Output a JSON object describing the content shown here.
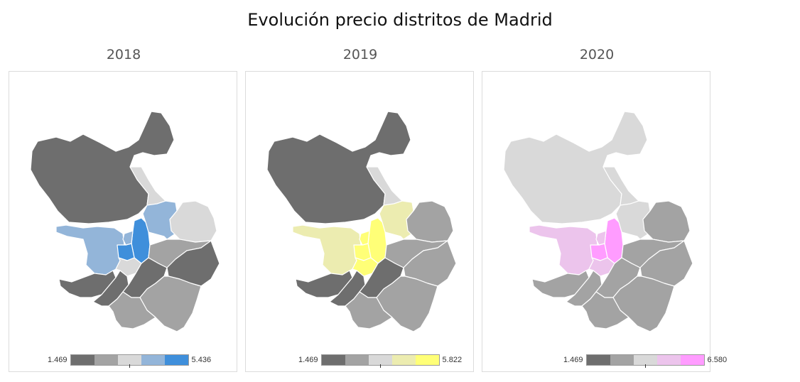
{
  "title": "Evolución precio distritos de Madrid",
  "panels": [
    {
      "year": "2018",
      "legend_min": "1.469",
      "legend_max": "5.436",
      "scale": [
        "#6e6e6e",
        "#a3a3a3",
        "#d9d9d9",
        "#93b5d9",
        "#3f8fdb"
      ],
      "extra": "#dddddd",
      "colors": {
        "north": 0,
        "nwbig": 2,
        "east_top": 2,
        "east_mid": 1,
        "west": 3,
        "ne": 3,
        "center1": 4,
        "center2": 4,
        "center3": 3,
        "c_small": 2,
        "south_w1": 0,
        "south_w2": 0,
        "south_c": 0,
        "south_e": 1,
        "se": 0,
        "east_low": 1
      }
    },
    {
      "year": "2019",
      "legend_min": "1.469",
      "legend_max": "5.822",
      "scale": [
        "#6e6e6e",
        "#a3a3a3",
        "#d9d9d9",
        "#ececb0",
        "#ffff77"
      ],
      "extra": "#dddddd",
      "colors": {
        "north": 0,
        "nwbig": 2,
        "east_top": 1,
        "east_mid": 1,
        "west": 3,
        "ne": 3,
        "center1": 4,
        "center2": 4,
        "center3": 4,
        "c_small": 4,
        "south_w1": 0,
        "south_w2": 0,
        "south_c": 0,
        "south_e": 1,
        "se": 1,
        "east_low": 1
      }
    },
    {
      "year": "2020",
      "legend_min": "1.469",
      "legend_max": "6.580",
      "scale": [
        "#6e6e6e",
        "#a3a3a3",
        "#d9d9d9",
        "#ecc4ec",
        "#ff9cff"
      ],
      "extra": "#dddddd",
      "colors": {
        "north": 2,
        "nwbig": 2,
        "east_top": 1,
        "east_mid": 1,
        "west": 3,
        "ne": 2,
        "center1": 4,
        "center2": 4,
        "center3": 3,
        "c_small": 3,
        "south_w1": 1,
        "south_w2": 1,
        "south_c": 1,
        "south_e": 1,
        "se": 1,
        "east_low": 1
      }
    }
  ]
}
